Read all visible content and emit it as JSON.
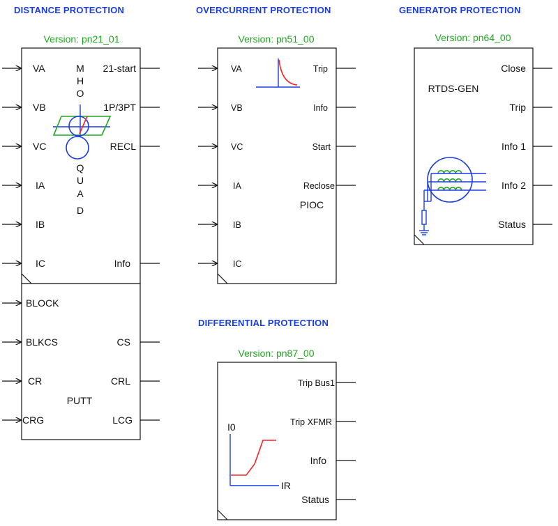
{
  "colors": {
    "title": "#1a3ce6",
    "version": "#1ea81e",
    "line": "#111111",
    "mho_circle": "#1a3ce6",
    "quad": "#1ea81e",
    "curve": "#ff2020"
  },
  "distance": {
    "title": "DISTANCE PROTECTION",
    "version": "Version: pn21_01",
    "mho_letters": [
      "M",
      "H",
      "O"
    ],
    "quad_letters": [
      "Q",
      "U",
      "A",
      "D"
    ],
    "inputs": [
      "VA",
      "VB",
      "VC",
      "IA",
      "IB",
      "IC"
    ],
    "outputs": [
      "21-start",
      "1P/3PT",
      "RECL",
      "Info"
    ],
    "putt": {
      "label": "PUTT",
      "inputs": [
        "BLOCK",
        "BLKCS",
        "CR",
        "CRG"
      ],
      "outputs": [
        "CS",
        "CRL",
        "LCG"
      ]
    }
  },
  "overcurrent": {
    "title": "OVERCURRENT PROTECTION",
    "version": "Version: pn51_00",
    "inputs": [
      "VA",
      "VB",
      "VC",
      "IA",
      "IB",
      "IC"
    ],
    "outputs": [
      "Trip",
      "Info",
      "Start",
      "Reclose"
    ],
    "sublabel": "PIOC"
  },
  "generator": {
    "title": "GENERATOR PROTECTION",
    "version": "Version: pn64_00",
    "label": "RTDS-GEN",
    "outputs": [
      "Close",
      "Trip",
      "Info 1",
      "Info 2",
      "Status"
    ]
  },
  "differential": {
    "title": "DIFFERENTIAL PROTECTION",
    "version": "Version: pn87_00",
    "outputs": [
      "Trip Bus1",
      "Trip XFMR",
      "Info",
      "Status"
    ],
    "axis_y": "I0",
    "axis_x": "IR"
  }
}
